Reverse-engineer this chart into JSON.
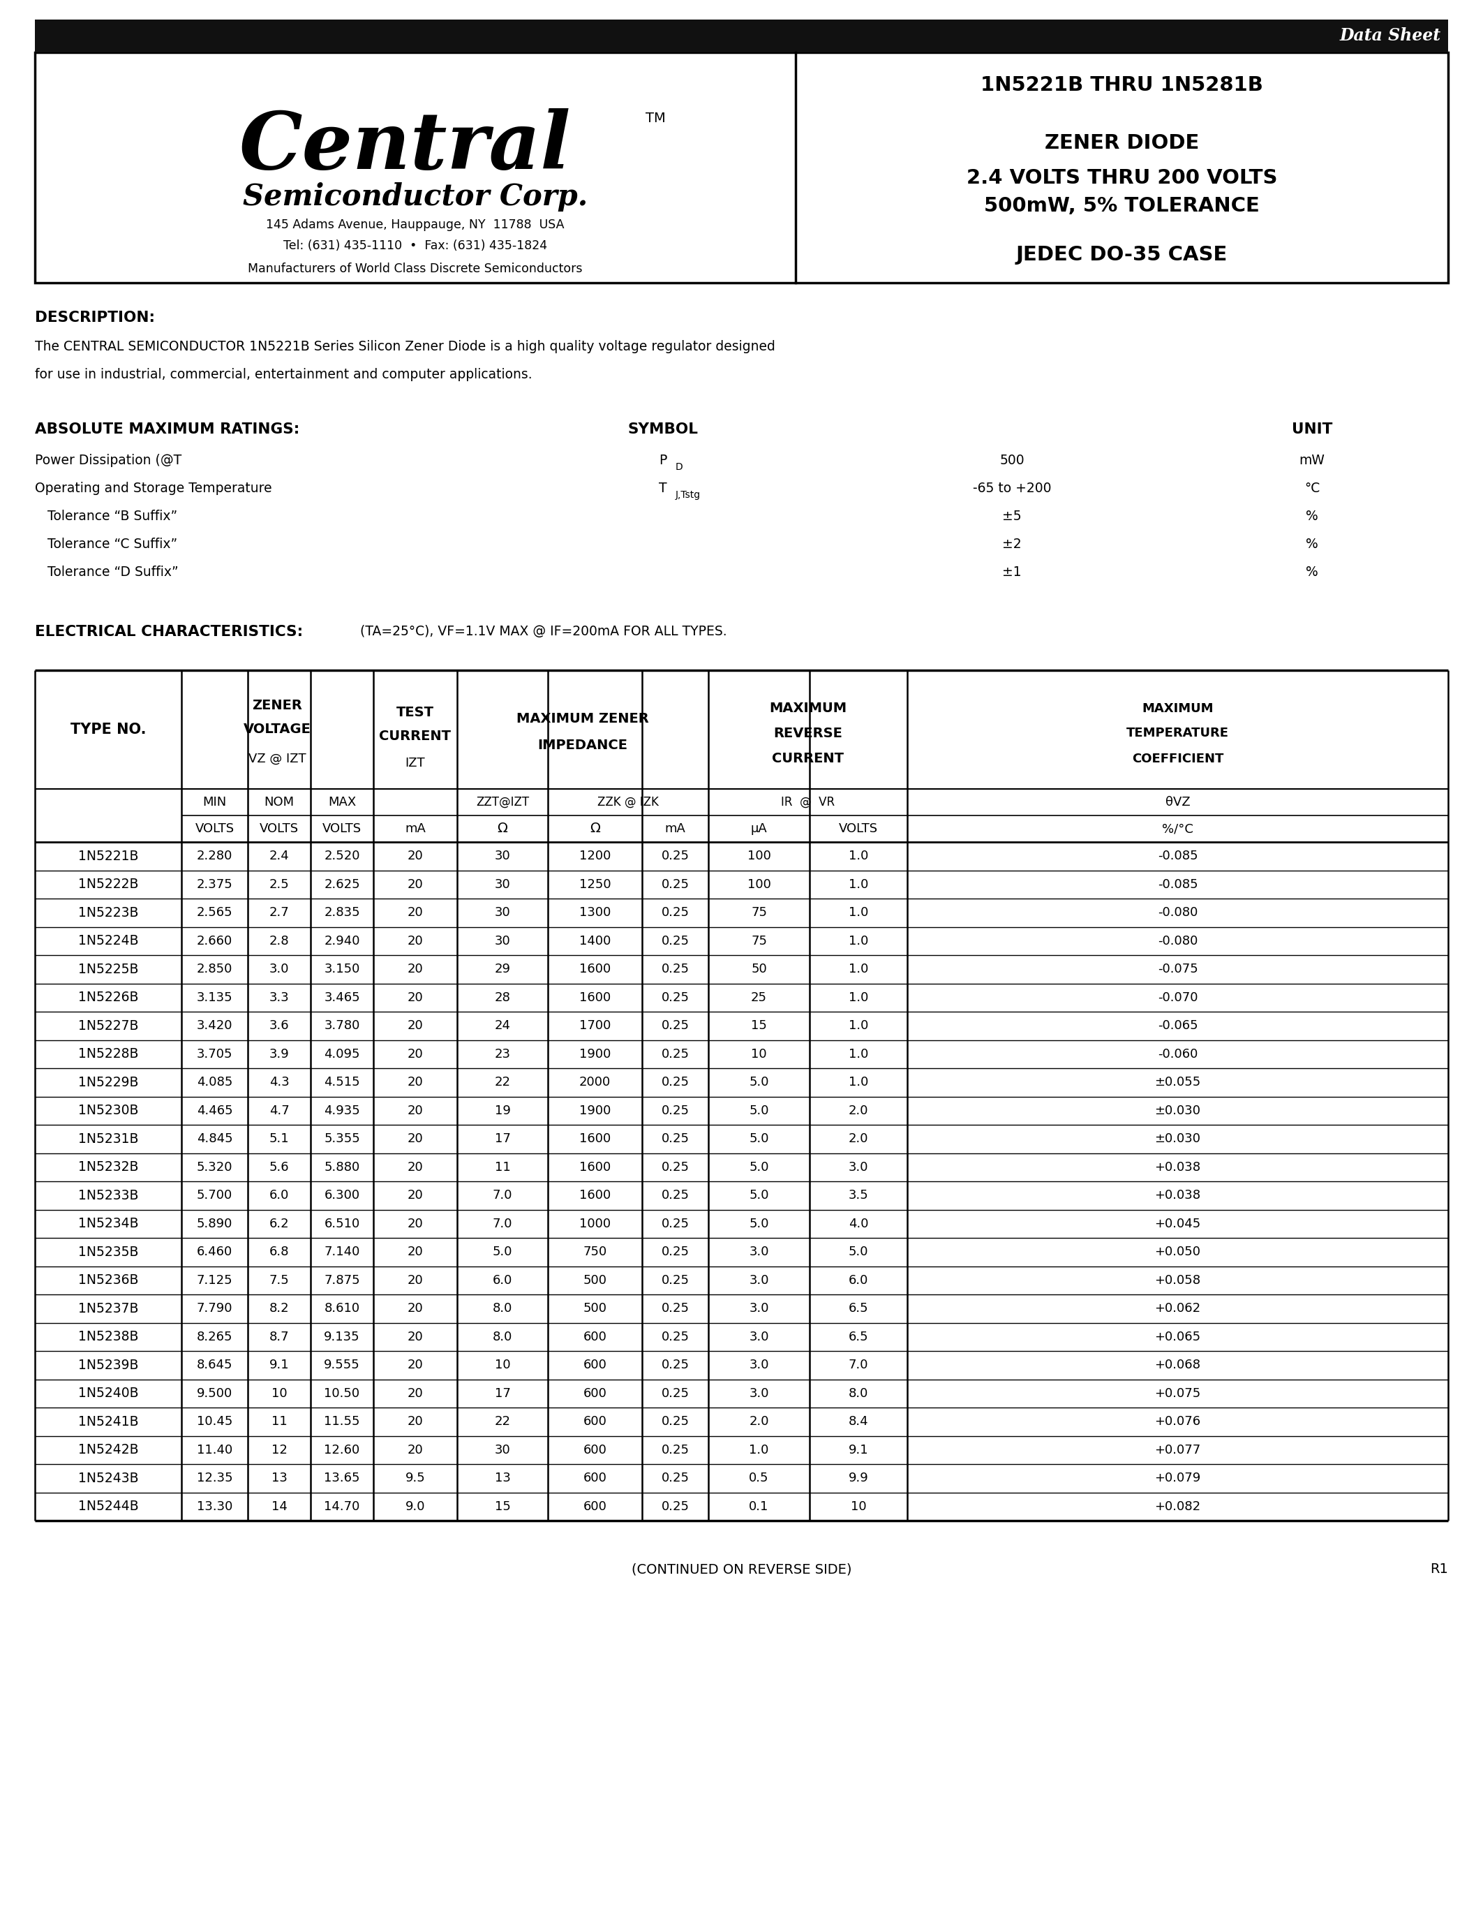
{
  "page_bg": "#ffffff",
  "header_bar_color": "#111111",
  "header_text_color": "#ffffff",
  "header_italic_text": "Data Sheet",
  "company_address": "145 Adams Avenue, Hauppauge, NY  11788  USA",
  "company_tel_fax": "Tel: (631) 435-1110  •  Fax: (631) 435-1824",
  "company_tagline": "Manufacturers of World Class Discrete Semiconductors",
  "part_range": "1N5221B THRU 1N5281B",
  "device_type": "ZENER DIODE",
  "voltage_range": "2.4 VOLTS THRU 200 VOLTS",
  "power_tolerance": "500mW, 5% TOLERANCE",
  "package": "JEDEC DO-35 CASE",
  "description_title": "DESCRIPTION:",
  "description_body1": "The CENTRAL SEMICONDUCTOR 1N5221B Series Silicon Zener Diode is a high quality voltage regulator designed",
  "description_body2": "for use in industrial, commercial, entertainment and computer applications.",
  "abs_max_title": "ABSOLUTE MAXIMUM RATINGS:",
  "elec_char_title": "ELECTRICAL CHARACTERISTICS:",
  "elec_char_subtitle": " (TA=25°C), VF=1.1V MAX @ IF=200mA FOR ALL TYPES.",
  "table_data": [
    [
      "1N5221B",
      "2.280",
      "2.4",
      "2.520",
      "20",
      "30",
      "1200",
      "0.25",
      "100",
      "1.0",
      "-0.085"
    ],
    [
      "1N5222B",
      "2.375",
      "2.5",
      "2.625",
      "20",
      "30",
      "1250",
      "0.25",
      "100",
      "1.0",
      "-0.085"
    ],
    [
      "1N5223B",
      "2.565",
      "2.7",
      "2.835",
      "20",
      "30",
      "1300",
      "0.25",
      "75",
      "1.0",
      "-0.080"
    ],
    [
      "1N5224B",
      "2.660",
      "2.8",
      "2.940",
      "20",
      "30",
      "1400",
      "0.25",
      "75",
      "1.0",
      "-0.080"
    ],
    [
      "1N5225B",
      "2.850",
      "3.0",
      "3.150",
      "20",
      "29",
      "1600",
      "0.25",
      "50",
      "1.0",
      "-0.075"
    ],
    [
      "1N5226B",
      "3.135",
      "3.3",
      "3.465",
      "20",
      "28",
      "1600",
      "0.25",
      "25",
      "1.0",
      "-0.070"
    ],
    [
      "1N5227B",
      "3.420",
      "3.6",
      "3.780",
      "20",
      "24",
      "1700",
      "0.25",
      "15",
      "1.0",
      "-0.065"
    ],
    [
      "1N5228B",
      "3.705",
      "3.9",
      "4.095",
      "20",
      "23",
      "1900",
      "0.25",
      "10",
      "1.0",
      "-0.060"
    ],
    [
      "1N5229B",
      "4.085",
      "4.3",
      "4.515",
      "20",
      "22",
      "2000",
      "0.25",
      "5.0",
      "1.0",
      "±0.055"
    ],
    [
      "1N5230B",
      "4.465",
      "4.7",
      "4.935",
      "20",
      "19",
      "1900",
      "0.25",
      "5.0",
      "2.0",
      "±0.030"
    ],
    [
      "1N5231B",
      "4.845",
      "5.1",
      "5.355",
      "20",
      "17",
      "1600",
      "0.25",
      "5.0",
      "2.0",
      "±0.030"
    ],
    [
      "1N5232B",
      "5.320",
      "5.6",
      "5.880",
      "20",
      "11",
      "1600",
      "0.25",
      "5.0",
      "3.0",
      "+0.038"
    ],
    [
      "1N5233B",
      "5.700",
      "6.0",
      "6.300",
      "20",
      "7.0",
      "1600",
      "0.25",
      "5.0",
      "3.5",
      "+0.038"
    ],
    [
      "1N5234B",
      "5.890",
      "6.2",
      "6.510",
      "20",
      "7.0",
      "1000",
      "0.25",
      "5.0",
      "4.0",
      "+0.045"
    ],
    [
      "1N5235B",
      "6.460",
      "6.8",
      "7.140",
      "20",
      "5.0",
      "750",
      "0.25",
      "3.0",
      "5.0",
      "+0.050"
    ],
    [
      "1N5236B",
      "7.125",
      "7.5",
      "7.875",
      "20",
      "6.0",
      "500",
      "0.25",
      "3.0",
      "6.0",
      "+0.058"
    ],
    [
      "1N5237B",
      "7.790",
      "8.2",
      "8.610",
      "20",
      "8.0",
      "500",
      "0.25",
      "3.0",
      "6.5",
      "+0.062"
    ],
    [
      "1N5238B",
      "8.265",
      "8.7",
      "9.135",
      "20",
      "8.0",
      "600",
      "0.25",
      "3.0",
      "6.5",
      "+0.065"
    ],
    [
      "1N5239B",
      "8.645",
      "9.1",
      "9.555",
      "20",
      "10",
      "600",
      "0.25",
      "3.0",
      "7.0",
      "+0.068"
    ],
    [
      "1N5240B",
      "9.500",
      "10",
      "10.50",
      "20",
      "17",
      "600",
      "0.25",
      "3.0",
      "8.0",
      "+0.075"
    ],
    [
      "1N5241B",
      "10.45",
      "11",
      "11.55",
      "20",
      "22",
      "600",
      "0.25",
      "2.0",
      "8.4",
      "+0.076"
    ],
    [
      "1N5242B",
      "11.40",
      "12",
      "12.60",
      "20",
      "30",
      "600",
      "0.25",
      "1.0",
      "9.1",
      "+0.077"
    ],
    [
      "1N5243B",
      "12.35",
      "13",
      "13.65",
      "9.5",
      "13",
      "600",
      "0.25",
      "0.5",
      "9.9",
      "+0.079"
    ],
    [
      "1N5244B",
      "13.30",
      "14",
      "14.70",
      "9.0",
      "15",
      "600",
      "0.25",
      "0.1",
      "10",
      "+0.082"
    ]
  ],
  "footer_left": "(CONTINUED ON REVERSE SIDE)",
  "footer_right": "R1"
}
